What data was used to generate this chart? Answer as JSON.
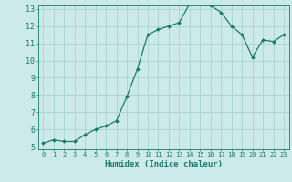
{
  "x": [
    0,
    1,
    2,
    3,
    4,
    5,
    6,
    7,
    8,
    9,
    10,
    11,
    12,
    13,
    14,
    15,
    16,
    17,
    18,
    19,
    20,
    21,
    22,
    23
  ],
  "y": [
    5.2,
    5.4,
    5.3,
    5.3,
    5.7,
    6.0,
    6.2,
    6.5,
    7.9,
    9.5,
    11.5,
    11.8,
    12.0,
    12.2,
    13.3,
    13.3,
    13.2,
    12.8,
    12.0,
    11.5,
    10.2,
    11.2,
    11.1,
    11.5
  ],
  "line_color": "#1a7a6e",
  "marker_color": "#1a7a6e",
  "bg_color": "#cceae7",
  "grid_color": "#aad4d0",
  "xlabel": "Humidex (Indice chaleur)",
  "ylabel": "",
  "title": "",
  "ylim": [
    5,
    13
  ],
  "xlim": [
    -0.5,
    23.5
  ],
  "yticks": [
    5,
    6,
    7,
    8,
    9,
    10,
    11,
    12,
    13
  ],
  "xticks": [
    0,
    1,
    2,
    3,
    4,
    5,
    6,
    7,
    8,
    9,
    10,
    11,
    12,
    13,
    14,
    15,
    16,
    17,
    18,
    19,
    20,
    21,
    22,
    23
  ],
  "figsize": [
    3.2,
    2.0
  ],
  "dpi": 100,
  "xlabel_fontsize": 6.5,
  "xtick_fontsize": 5.0,
  "ytick_fontsize": 6.0,
  "linewidth": 0.9,
  "markersize": 2.0
}
